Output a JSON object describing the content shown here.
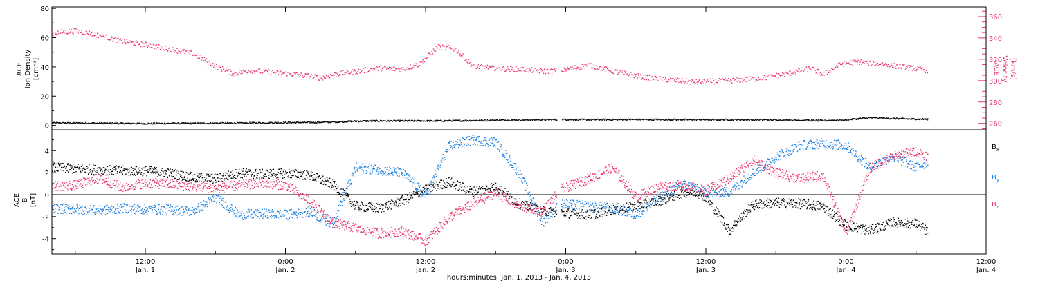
{
  "colors": {
    "density": "#000000",
    "velocity": "#e8386a",
    "bx": "#000000",
    "by": "#1a7fe0",
    "bz": "#e8386a",
    "axis": "#000000"
  },
  "xlabel": "hours:minutes, Jan.  1, 2013 - Jan.  4, 2013",
  "x_ticks": [
    {
      "hours": 12,
      "time": "12:00",
      "date": "Jan. 1"
    },
    {
      "hours": 24,
      "time": "0:00",
      "date": "Jan. 2"
    },
    {
      "hours": 36,
      "time": "12:00",
      "date": "Jan. 2"
    },
    {
      "hours": 48,
      "time": "0:00",
      "date": "Jan. 3"
    },
    {
      "hours": 60,
      "time": "12:00",
      "date": "Jan. 3"
    },
    {
      "hours": 72,
      "time": "0:00",
      "date": "Jan. 4"
    },
    {
      "hours": 84,
      "time": "12:00",
      "date": "Jan. 4"
    }
  ],
  "chart_data": [
    {
      "type": "scatter",
      "panel": "top",
      "xlim_hours": [
        4,
        84
      ],
      "left_axis": {
        "label_lines": [
          "ACE",
          "Ion Density",
          "[cm⁻³]"
        ],
        "ylim": [
          -3,
          81
        ],
        "ticks": [
          0,
          20,
          40,
          60,
          80
        ]
      },
      "right_axis": {
        "label_lines": [
          "ACE",
          "Velocity",
          "[km/s]"
        ],
        "ylim": [
          254,
          369
        ],
        "ticks": [
          260,
          280,
          300,
          320,
          340,
          360
        ]
      },
      "series": [
        {
          "axis": "left",
          "x": [
            4,
            8,
            12,
            16,
            20,
            24,
            28,
            30,
            32,
            36,
            40,
            44,
            46.5,
            47.5,
            50,
            54,
            58,
            62,
            66,
            70,
            72,
            74,
            76,
            78,
            79
          ],
          "y": [
            2,
            1.8,
            1.6,
            1.7,
            1.9,
            2.2,
            2.6,
            3.2,
            3.4,
            3.3,
            3.6,
            4,
            4.2,
            4.3,
            4.2,
            4.3,
            4.2,
            4.2,
            4.1,
            3.5,
            4.2,
            5.5,
            5,
            4.6,
            4.5
          ]
        },
        {
          "axis": "right",
          "x": [
            4,
            6,
            8,
            10,
            12,
            14,
            16,
            18,
            19.5,
            21,
            23,
            25,
            27,
            28.5,
            30,
            32,
            34,
            35.5,
            37,
            38.5,
            40,
            42,
            44,
            46.5,
            47.5,
            50,
            51,
            53,
            55,
            57,
            59,
            61,
            63,
            65,
            67,
            69,
            70,
            71.5,
            73,
            75,
            77,
            79
          ],
          "y": [
            345,
            347,
            343,
            337,
            334,
            330,
            326,
            314,
            307,
            310,
            308,
            306,
            303,
            307,
            309,
            312,
            311,
            316,
            332,
            330,
            314,
            312,
            311,
            309,
            310,
            315,
            312,
            307,
            303,
            301,
            299,
            300,
            301,
            303,
            307,
            312,
            306,
            316,
            318,
            316,
            313,
            310
          ]
        }
      ]
    },
    {
      "type": "scatter",
      "panel": "bottom",
      "xlim_hours": [
        4,
        84
      ],
      "ylabel_lines": [
        "ACE",
        "B",
        "[nT]"
      ],
      "ylim": [
        -5.4,
        5.9
      ],
      "ticks": [
        -4,
        -2,
        0,
        2,
        4
      ],
      "zero_line": true,
      "series": [
        {
          "name": "B",
          "sub": "x",
          "x": [
            4,
            6,
            8,
            10,
            12,
            14,
            16,
            18,
            20,
            22,
            24,
            26,
            28,
            30,
            32,
            34,
            36,
            38,
            40,
            42,
            44,
            46,
            47.5,
            50,
            52,
            54,
            56,
            58,
            59,
            60,
            62,
            64,
            66,
            68,
            70,
            72,
            74,
            76,
            78,
            79
          ],
          "y": [
            2.5,
            2.4,
            2.3,
            2.2,
            2.2,
            2.0,
            1.6,
            1.5,
            2.0,
            1.9,
            2.0,
            1.8,
            1.0,
            -1.0,
            -1.2,
            -0.5,
            0.5,
            1.2,
            0.3,
            0.8,
            -0.8,
            -1.5,
            -1.6,
            -1.8,
            -1.3,
            -1.0,
            -0.5,
            0.2,
            0.3,
            -0.2,
            -3.2,
            -0.9,
            -0.7,
            -0.8,
            -1.0,
            -2.8,
            -3.2,
            -2.5,
            -2.6,
            -3.3
          ]
        },
        {
          "name": "B",
          "sub": "y",
          "x": [
            4,
            6,
            8,
            10,
            12,
            14,
            16,
            18,
            20,
            22,
            24,
            26,
            28,
            30,
            32,
            34,
            36,
            38,
            40,
            42,
            44,
            46,
            47.5,
            50,
            52,
            54,
            56,
            58,
            60,
            62,
            64,
            66,
            68,
            70,
            72,
            74,
            76,
            78,
            79
          ],
          "y": [
            -1.2,
            -1.3,
            -1.4,
            -1.2,
            -1.3,
            -1.3,
            -1.5,
            -0.2,
            -1.8,
            -1.7,
            -1.8,
            -1.5,
            -2.6,
            2.5,
            2.3,
            2.0,
            0,
            4.5,
            5.0,
            4.8,
            2.0,
            -2.5,
            -0.8,
            -1.0,
            -1.2,
            -1.8,
            -0.2,
            1.0,
            0.2,
            0.3,
            2.0,
            3.5,
            4.5,
            4.7,
            4.5,
            2.5,
            3.5,
            2.5,
            3.0
          ]
        },
        {
          "name": "B",
          "sub": "z",
          "x": [
            4,
            6,
            8,
            10,
            12,
            14,
            16,
            18,
            20,
            22,
            24,
            26,
            28,
            30,
            32,
            34,
            36,
            38,
            40,
            42,
            44,
            46,
            47.5,
            50,
            52,
            54,
            56,
            58,
            60,
            62,
            64,
            66,
            68,
            70,
            72,
            74,
            76,
            78,
            79
          ],
          "y": [
            0.8,
            0.9,
            1.5,
            0.7,
            1.1,
            1.0,
            0.8,
            0.6,
            0.9,
            1.1,
            0.9,
            -0.5,
            -2.5,
            -3.0,
            -3.5,
            -3.3,
            -4.2,
            -2.0,
            -0.8,
            0.2,
            -1.0,
            -1.5,
            0.5,
            1.5,
            2.5,
            -0.2,
            0.8,
            0.9,
            0.4,
            1.5,
            3.2,
            2.0,
            1.5,
            1.8,
            -3.5,
            2.5,
            3.5,
            4.0,
            3.5
          ]
        }
      ]
    }
  ]
}
